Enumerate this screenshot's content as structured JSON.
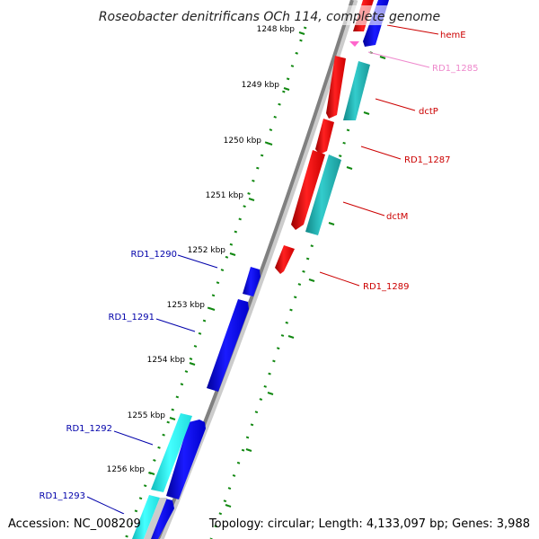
{
  "title": "Roseobacter denitrificans OCh 114, complete genome",
  "accession": "Accession: NC_008209",
  "topology": "Topology: circular; Length: 4,133,097 bp; Genes: 3,988",
  "ticks": [
    "1248 kbp",
    "1249 kbp",
    "1250 kbp",
    "1251 kbp",
    "1252 kbp",
    "1253 kbp",
    "1254 kbp",
    "1255 kbp",
    "1256 kbp"
  ],
  "genes": {
    "hemE": "hemE",
    "RD1_1285": "RD1_1285",
    "dctP": "dctP",
    "RD1_1287": "RD1_1287",
    "dctM": "dctM",
    "RD1_1289": "RD1_1289",
    "RD1_1290": "RD1_1290",
    "RD1_1291": "RD1_1291",
    "RD1_1292": "RD1_1292",
    "RD1_1293": "RD1_1293"
  },
  "colors": {
    "forward_cds": "#ee1111",
    "reverse_cds": "#1010ee",
    "forward_feature": "#22bbbb",
    "reverse_feature": "#22eeee",
    "small_feature": "#ff66cc",
    "backbone": "#888888",
    "tick_marks": "#118811",
    "right_label": "#cc0000",
    "left_label": "#0000aa",
    "faded_label": "#ee88cc"
  }
}
